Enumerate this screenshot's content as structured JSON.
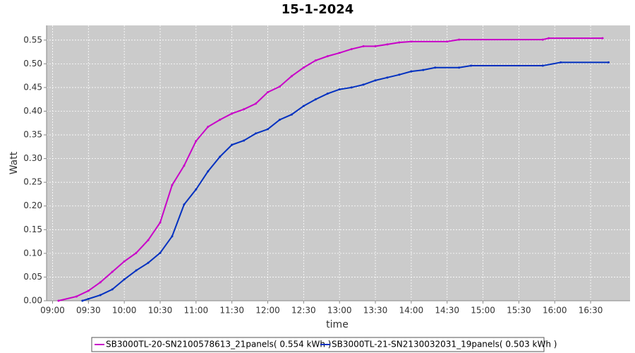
{
  "chart_data": {
    "type": "line",
    "title": "15-1-2024",
    "x_label": "time",
    "y_label": "Watt",
    "xlim": [
      "08:55",
      "17:03"
    ],
    "xticks": [
      "09:00",
      "09:30",
      "10:00",
      "10:30",
      "11:00",
      "11:30",
      "12:00",
      "12:30",
      "13:00",
      "13:30",
      "14:00",
      "14:30",
      "15:00",
      "15:30",
      "16:00",
      "16:30"
    ],
    "ylim": [
      0,
      0.581
    ],
    "yticks": [
      {
        "value": 0,
        "label": "0.00"
      },
      0.05,
      {
        "value": 0.1,
        "label": "0.10"
      },
      0.15,
      {
        "value": 0.2,
        "label": "0.20"
      },
      0.25,
      {
        "value": 0.3,
        "label": "0.30"
      },
      0.35,
      {
        "value": 0.4,
        "label": "0.40"
      },
      0.45,
      {
        "value": 0.5,
        "label": "0.50"
      },
      0.55
    ],
    "grid": true,
    "series": [
      {
        "name": "SB3000TL-20-SN2100578613_21panels( 0.554 kWh )",
        "color": "#c800c8",
        "x": [
          "09:05",
          "09:20",
          "09:30",
          "09:40",
          "09:50",
          "10:00",
          "10:10",
          "10:20",
          "10:30",
          "10:40",
          "10:50",
          "11:00",
          "11:10",
          "11:20",
          "11:30",
          "11:40",
          "11:50",
          "12:00",
          "12:10",
          "12:20",
          "12:30",
          "12:40",
          "12:50",
          "13:00",
          "13:10",
          "13:20",
          "13:30",
          "13:40",
          "13:50",
          "14:00",
          "14:30",
          "14:40",
          "15:50",
          "15:55",
          "16:40"
        ],
        "values": [
          0,
          0.009,
          0.021,
          0.039,
          0.061,
          0.083,
          0.101,
          0.128,
          0.165,
          0.244,
          0.285,
          0.337,
          0.367,
          0.382,
          0.395,
          0.404,
          0.416,
          0.44,
          0.452,
          0.474,
          0.492,
          0.507,
          0.516,
          0.523,
          0.531,
          0.537,
          0.537,
          0.541,
          0.545,
          0.547,
          0.547,
          0.551,
          0.551,
          0.554,
          0.554
        ]
      },
      {
        "name": "SB3000TL-21-SN2130032031_19panels( 0.503 kWh )",
        "color": "#0030c0",
        "x": [
          "09:25",
          "09:30",
          "09:40",
          "09:50",
          "10:00",
          "10:10",
          "10:20",
          "10:30",
          "10:40",
          "10:50",
          "11:00",
          "11:10",
          "11:20",
          "11:30",
          "11:40",
          "11:50",
          "12:00",
          "12:10",
          "12:20",
          "12:30",
          "12:40",
          "12:50",
          "13:00",
          "13:10",
          "13:20",
          "13:30",
          "13:40",
          "13:50",
          "14:00",
          "14:10",
          "14:20",
          "14:40",
          "14:50",
          "15:50",
          "16:05",
          "16:45"
        ],
        "values": [
          0,
          0.004,
          0.012,
          0.024,
          0.045,
          0.064,
          0.08,
          0.101,
          0.136,
          0.203,
          0.235,
          0.273,
          0.304,
          0.329,
          0.338,
          0.353,
          0.362,
          0.382,
          0.393,
          0.411,
          0.425,
          0.437,
          0.446,
          0.45,
          0.456,
          0.465,
          0.471,
          0.477,
          0.484,
          0.487,
          0.492,
          0.492,
          0.496,
          0.496,
          0.503,
          0.503
        ]
      }
    ]
  }
}
